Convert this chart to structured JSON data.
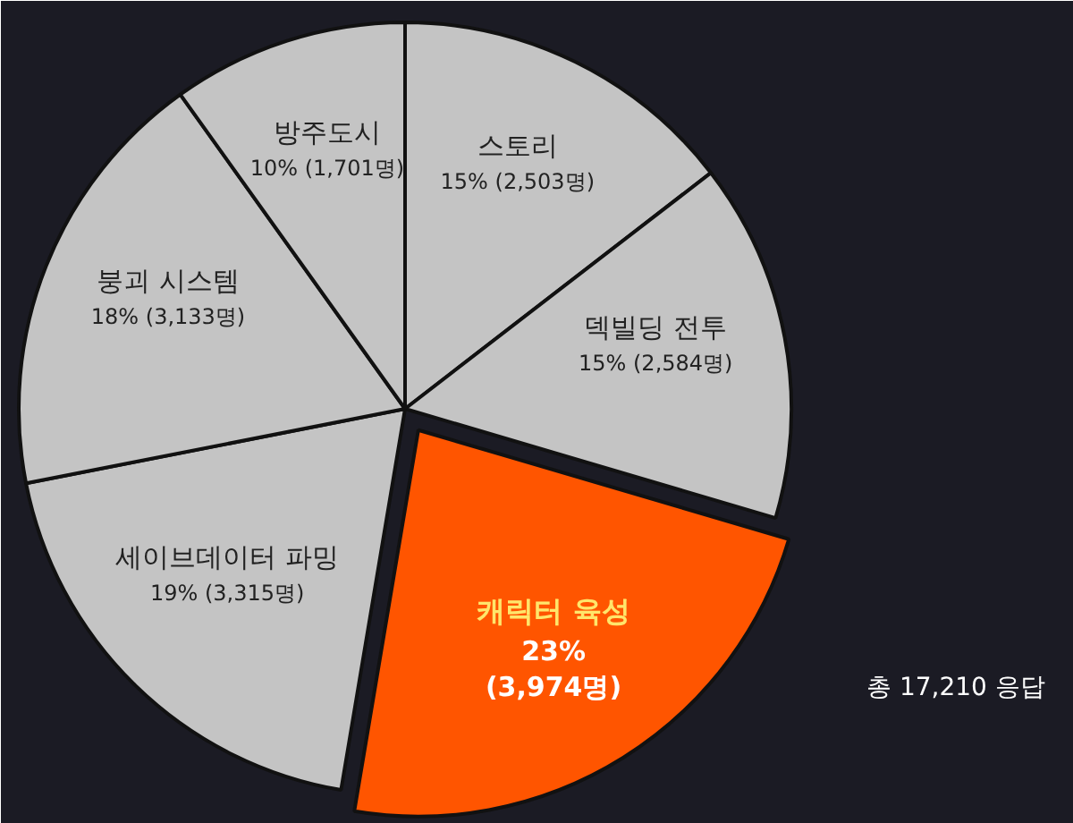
{
  "chart_data": {
    "type": "pie",
    "categories": [
      "스토리",
      "덱빌딩 전투",
      "캐릭터 육성",
      "세이브데이터 파밍",
      "붕괴 시스템",
      "방주도시"
    ],
    "values": [
      2503,
      2584,
      3974,
      3315,
      3133,
      1701
    ],
    "colors": [
      "#c4c4c4",
      "#c4c4c4",
      "#ff5500",
      "#c4c4c4",
      "#c4c4c4",
      "#c4c4c4"
    ],
    "value_labels": [
      "15% (2,503명)",
      "15% (2,584명)",
      "23%\n(3,974명)",
      "19% (3,315명)",
      "18% (3,133명)",
      "10% (1,701명)"
    ],
    "annotations": [
      "총 17,210 응답"
    ]
  }
}
